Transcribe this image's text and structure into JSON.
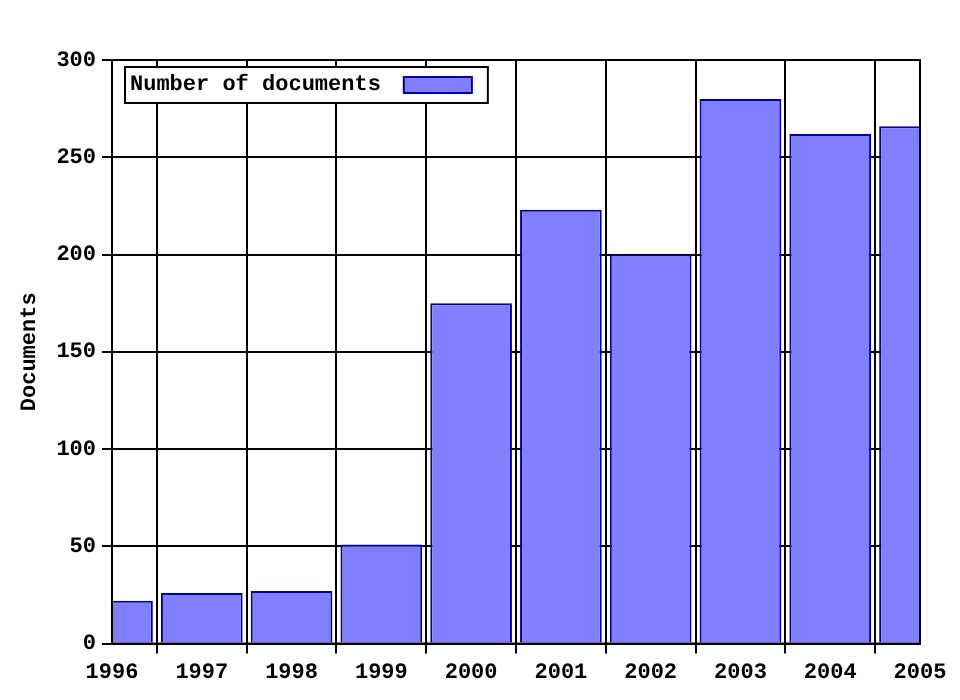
{
  "chart_data": {
    "type": "bar",
    "ylabel": "Documents",
    "x": [
      1996,
      1997,
      1998,
      1999,
      2000,
      2001,
      2002,
      2003,
      2004,
      2005
    ],
    "series": [
      {
        "name": "Number of documents",
        "color": "#8080ff",
        "values": [
          22,
          26,
          27,
          51,
          175,
          223,
          200,
          280,
          262,
          266
        ]
      }
    ],
    "xlim": [
      1996,
      2005
    ],
    "xticks": [
      1996,
      1997,
      1998,
      1999,
      2000,
      2001,
      2002,
      2003,
      2004,
      2005
    ],
    "ylim": [
      0,
      300
    ],
    "yticks": [
      0,
      50,
      100,
      150,
      200,
      250,
      300
    ],
    "grid": true,
    "legend": "top left"
  }
}
